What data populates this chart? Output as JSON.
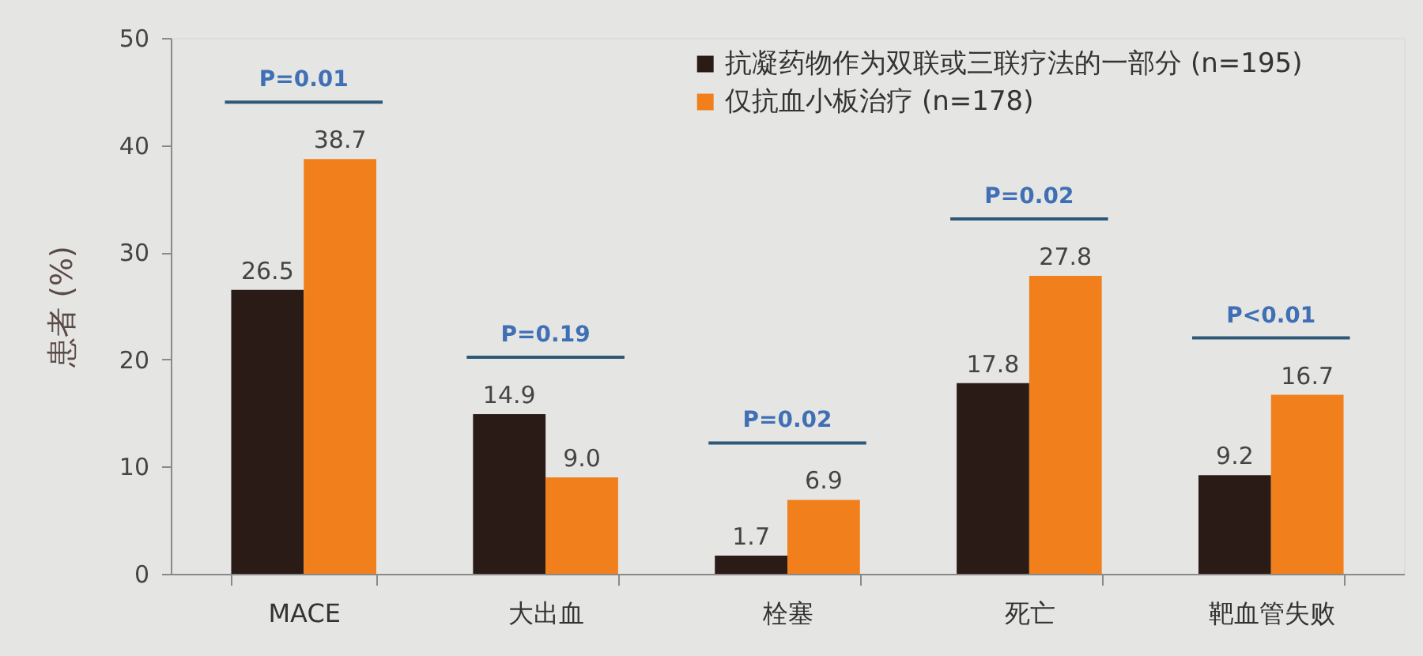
{
  "chart_data": {
    "type": "bar",
    "ylabel": "患者 (%)",
    "categories": [
      "MACE",
      "大出血",
      "栓塞",
      "死亡",
      "靶血管失败"
    ],
    "series": [
      {
        "name": "抗凝药物作为双联或三联疗法的一部分 (n=195)",
        "color": "#2b1b17",
        "values": [
          26.5,
          14.9,
          1.7,
          17.8,
          9.2
        ],
        "value_labels": [
          "26.5",
          "14.9",
          "1.7",
          "17.8",
          "9.2"
        ]
      },
      {
        "name": "仅抗血小板治疗 (n=178)",
        "color": "#f07f1c",
        "values": [
          38.7,
          9.0,
          6.9,
          27.8,
          16.7
        ],
        "value_labels": [
          "38.7",
          "9.0",
          "6.9",
          "27.8",
          "16.7"
        ]
      }
    ],
    "ylim": [
      0,
      50
    ],
    "yticks": [
      0,
      10,
      20,
      30,
      40,
      50
    ],
    "grid": false,
    "legend": "top right",
    "annotations": [
      "P=0.01",
      "P=0.19",
      "P=0.02",
      "P=0.02",
      "P<0.01"
    ]
  }
}
